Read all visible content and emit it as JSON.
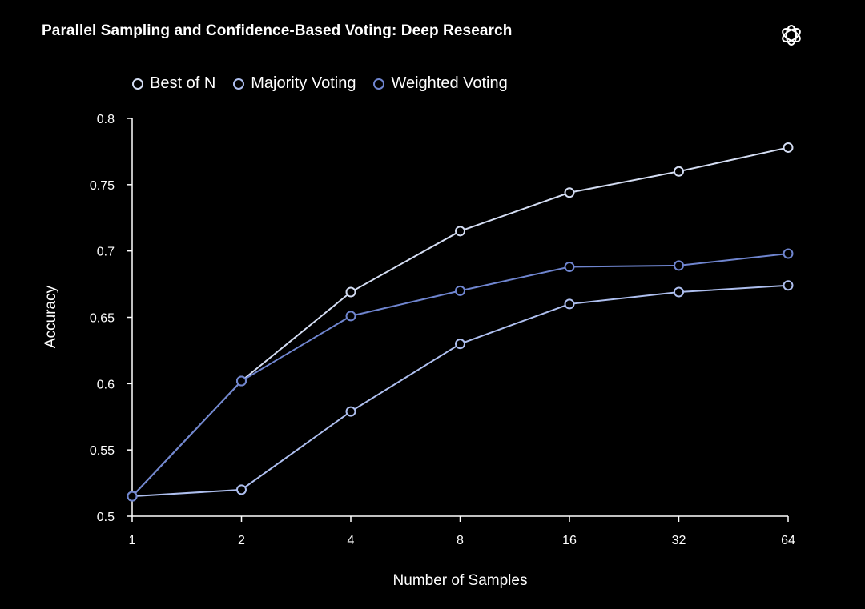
{
  "colors": {
    "background": "#000000",
    "best_of_n": "#d4ddf3",
    "majority_voting": "#aebfef",
    "weighted_voting": "#6f85cf",
    "axis": "#ffffff"
  },
  "chart_data": {
    "type": "line",
    "title": "Parallel Sampling and Confidence-Based Voting: Deep Research",
    "xlabel": "Number of Samples",
    "ylabel": "Accuracy",
    "categories": [
      "1",
      "2",
      "4",
      "8",
      "16",
      "32",
      "64"
    ],
    "ylim": [
      0.5,
      0.8
    ],
    "yticks": [
      "0.5",
      "0.55",
      "0.6",
      "0.65",
      "0.7",
      "0.75",
      "0.8"
    ],
    "grid": false,
    "legend_position": "top-left",
    "series": [
      {
        "name": "Best of N",
        "color_key": "best_of_n",
        "values": [
          0.515,
          0.602,
          0.669,
          0.715,
          0.744,
          0.76,
          0.778
        ]
      },
      {
        "name": "Majority Voting",
        "color_key": "majority_voting",
        "values": [
          0.515,
          0.52,
          0.579,
          0.63,
          0.66,
          0.669,
          0.674
        ]
      },
      {
        "name": "Weighted Voting",
        "color_key": "weighted_voting",
        "values": [
          0.515,
          0.602,
          0.651,
          0.67,
          0.688,
          0.689,
          0.698
        ]
      }
    ]
  }
}
